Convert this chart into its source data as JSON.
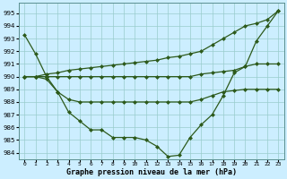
{
  "line1": [
    993.3,
    991.8,
    990.0,
    988.8,
    987.2,
    986.5,
    985.8,
    985.8,
    985.2,
    985.2,
    985.2,
    985.0,
    984.5,
    983.7,
    983.8,
    985.2,
    986.2,
    987.0,
    988.5,
    990.3,
    990.8,
    992.8,
    994.0,
    995.2
  ],
  "line2": [
    990.0,
    990.0,
    990.2,
    990.3,
    990.5,
    990.6,
    990.7,
    990.8,
    990.9,
    991.0,
    991.1,
    991.2,
    991.3,
    991.5,
    991.6,
    991.8,
    992.0,
    992.5,
    993.0,
    993.5,
    994.0,
    994.2,
    994.5,
    995.2
  ],
  "line3": [
    990.0,
    990.0,
    990.0,
    990.0,
    990.0,
    990.0,
    990.0,
    990.0,
    990.0,
    990.0,
    990.0,
    990.0,
    990.0,
    990.0,
    990.0,
    990.0,
    990.2,
    990.3,
    990.4,
    990.5,
    990.8,
    991.0,
    991.0,
    991.0
  ],
  "line4": [
    990.0,
    990.0,
    989.8,
    988.8,
    988.2,
    988.0,
    988.0,
    988.0,
    988.0,
    988.0,
    988.0,
    988.0,
    988.0,
    988.0,
    988.0,
    988.0,
    988.2,
    988.5,
    988.8,
    988.9,
    989.0,
    989.0,
    989.0,
    989.0
  ],
  "x": [
    0,
    1,
    2,
    3,
    4,
    5,
    6,
    7,
    8,
    9,
    10,
    11,
    12,
    13,
    14,
    15,
    16,
    17,
    18,
    19,
    20,
    21,
    22,
    23
  ],
  "ylim": [
    983.5,
    995.8
  ],
  "yticks": [
    984,
    985,
    986,
    987,
    988,
    989,
    990,
    991,
    992,
    993,
    994,
    995
  ],
  "xtick_labels": [
    "0",
    "1",
    "2",
    "3",
    "4",
    "5",
    "6",
    "7",
    "8",
    "9",
    "10",
    "11",
    "12",
    "13",
    "14",
    "15",
    "16",
    "17",
    "18",
    "19",
    "20",
    "21",
    "22",
    "23"
  ],
  "line_color": "#2d5a1b",
  "bg_color": "#cceeff",
  "grid_color": "#99cccc",
  "xlabel": "Graphe pression niveau de la mer (hPa)",
  "marker": "D",
  "marker_size": 2.0,
  "line_width": 0.9
}
